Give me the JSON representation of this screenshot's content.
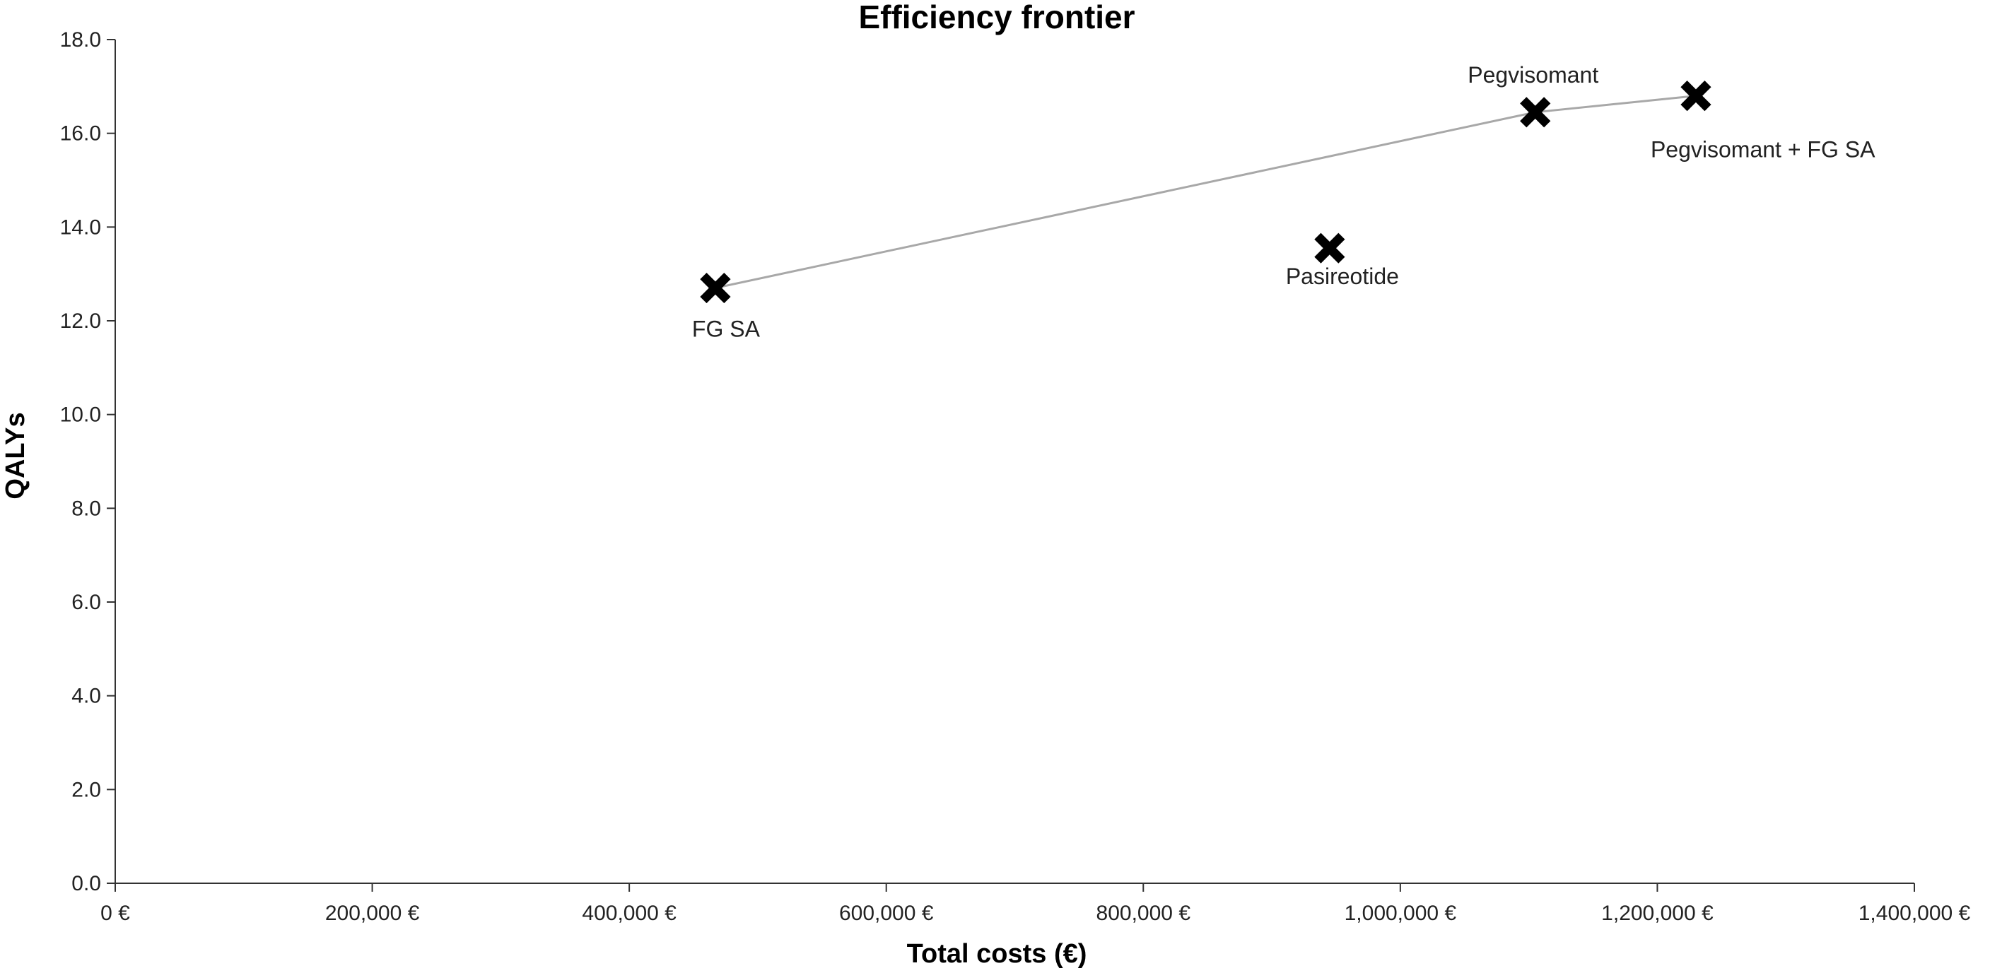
{
  "chart_data": {
    "type": "scatter",
    "title": "Efficiency frontier",
    "xlabel": "Total costs (€)",
    "ylabel": "QALYs",
    "xlim": [
      0,
      1400000
    ],
    "ylim": [
      0,
      18
    ],
    "x_ticks": [
      0,
      200000,
      400000,
      600000,
      800000,
      1000000,
      1200000,
      1400000
    ],
    "x_tick_labels": [
      "0 €",
      "200,000 €",
      "400,000 €",
      "600,000 €",
      "800,000 €",
      "1,000,000 €",
      "1,200,000 €",
      "1,400,000 €"
    ],
    "y_ticks": [
      0,
      2,
      4,
      6,
      8,
      10,
      12,
      14,
      16,
      18
    ],
    "y_tick_labels": [
      "0.0",
      "2.0",
      "4.0",
      "6.0",
      "8.0",
      "10.0",
      "12.0",
      "14.0",
      "16.0",
      "18.0"
    ],
    "grid": false,
    "legend": "none",
    "points": [
      {
        "label": "FG SA",
        "x": 467000,
        "y": 12.7,
        "label_position": "below"
      },
      {
        "label": "Pasireotide",
        "x": 945000,
        "y": 13.55,
        "label_position": "below"
      },
      {
        "label": "Pegvisomant",
        "x": 1105000,
        "y": 16.45,
        "label_position": "above"
      },
      {
        "label": "Pegvisomant + FG SA",
        "x": 1230000,
        "y": 16.8,
        "label_position": "below-right"
      }
    ],
    "frontier": [
      "FG SA",
      "Pegvisomant",
      "Pegvisomant + FG SA"
    ],
    "colors": {
      "marker": "#000000",
      "frontier_line": "#a8a8a8",
      "axis": "#333333"
    }
  }
}
